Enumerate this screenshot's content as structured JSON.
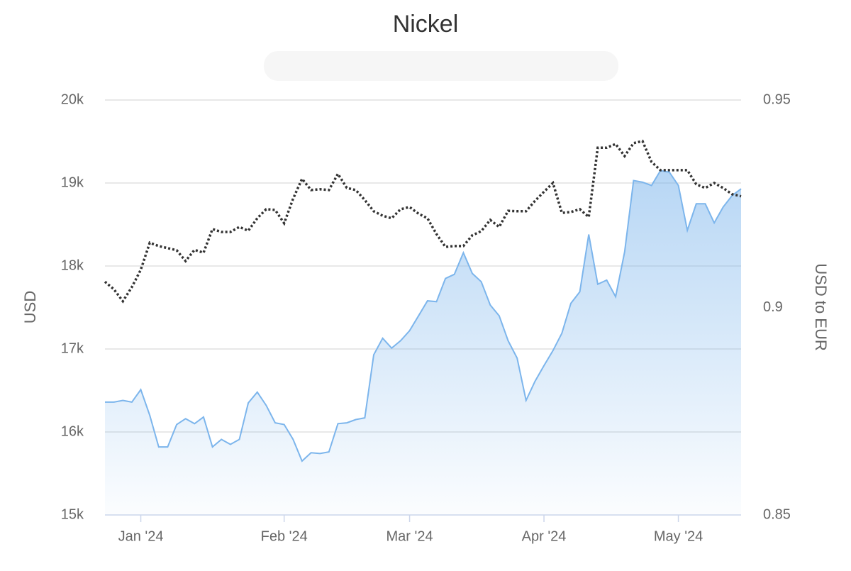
{
  "chart_data": {
    "type": "area-line",
    "title": "Nickel",
    "y_label": "USD",
    "y2_label": "USD to EUR",
    "categories": [
      null,
      null,
      null,
      null,
      "Jan '24",
      null,
      null,
      null,
      null,
      null,
      null,
      null,
      null,
      null,
      null,
      null,
      null,
      null,
      null,
      null,
      "Feb '24",
      null,
      null,
      null,
      null,
      null,
      null,
      null,
      null,
      null,
      null,
      null,
      null,
      null,
      "Mar '24",
      null,
      null,
      null,
      null,
      null,
      null,
      null,
      null,
      null,
      null,
      null,
      null,
      null,
      null,
      "Apr '24",
      null,
      null,
      null,
      null,
      null,
      null,
      null,
      null,
      null,
      null,
      null,
      null,
      null,
      null,
      "May '24",
      null,
      null,
      null,
      null,
      null,
      null,
      null
    ],
    "series": [
      {
        "type": "area",
        "color": "#7cb5ec",
        "values": [
          16360,
          16360,
          16380,
          16360,
          16510,
          16200,
          15820,
          15820,
          16090,
          16160,
          16100,
          16180,
          15820,
          15910,
          15850,
          15910,
          16350,
          16480,
          16320,
          16110,
          16090,
          15910,
          15650,
          15750,
          15740,
          15760,
          16100,
          16110,
          16150,
          16170,
          16930,
          17130,
          17010,
          17100,
          17220,
          17400,
          17580,
          17570,
          17850,
          17900,
          18160,
          17910,
          17810,
          17530,
          17400,
          17100,
          16890,
          16380,
          16610,
          16800,
          16980,
          17190,
          17550,
          17690,
          18380,
          17780,
          17830,
          17630,
          18170,
          19030,
          19010,
          18970,
          19150,
          19130,
          18970,
          18430,
          18750,
          18750,
          18520,
          18710,
          18850,
          18930
        ]
      },
      {
        "type": "line",
        "axis": "y2",
        "color": "#333333",
        "values": [
          0.9062,
          0.9044,
          0.9015,
          0.9049,
          0.9091,
          0.9156,
          0.9148,
          0.9143,
          0.9138,
          0.9112,
          0.9139,
          0.9132,
          0.9189,
          0.9182,
          0.9182,
          0.9194,
          0.9185,
          0.9215,
          0.9237,
          0.9235,
          0.9203,
          0.9262,
          0.931,
          0.9283,
          0.9285,
          0.9283,
          0.9322,
          0.9288,
          0.9283,
          0.9259,
          0.9232,
          0.9221,
          0.9215,
          0.9237,
          0.9242,
          0.9226,
          0.9215,
          0.9177,
          0.9146,
          0.9148,
          0.9148,
          0.9174,
          0.9184,
          0.9211,
          0.9194,
          0.9233,
          0.9232,
          0.9232,
          0.9257,
          0.9279,
          0.93,
          0.9228,
          0.923,
          0.9237,
          0.9218,
          0.9385,
          0.9385,
          0.9394,
          0.9365,
          0.9396,
          0.9401,
          0.9351,
          0.9331,
          0.9331,
          0.9331,
          0.9331,
          0.9297,
          0.9288,
          0.93,
          0.9288,
          0.9273,
          0.9268
        ]
      }
    ],
    "ylim": [
      15000,
      20000
    ],
    "yticks": [
      {
        "value": 15000,
        "label": "15k"
      },
      {
        "value": 16000,
        "label": "16k"
      },
      {
        "value": 17000,
        "label": "17k"
      },
      {
        "value": 18000,
        "label": "18k"
      },
      {
        "value": 19000,
        "label": "19k"
      },
      {
        "value": 20000,
        "label": "20k"
      }
    ],
    "y2lim": [
      0.85,
      0.95
    ],
    "y2ticks": [
      0.85,
      0.9,
      0.95
    ],
    "grid": true
  }
}
